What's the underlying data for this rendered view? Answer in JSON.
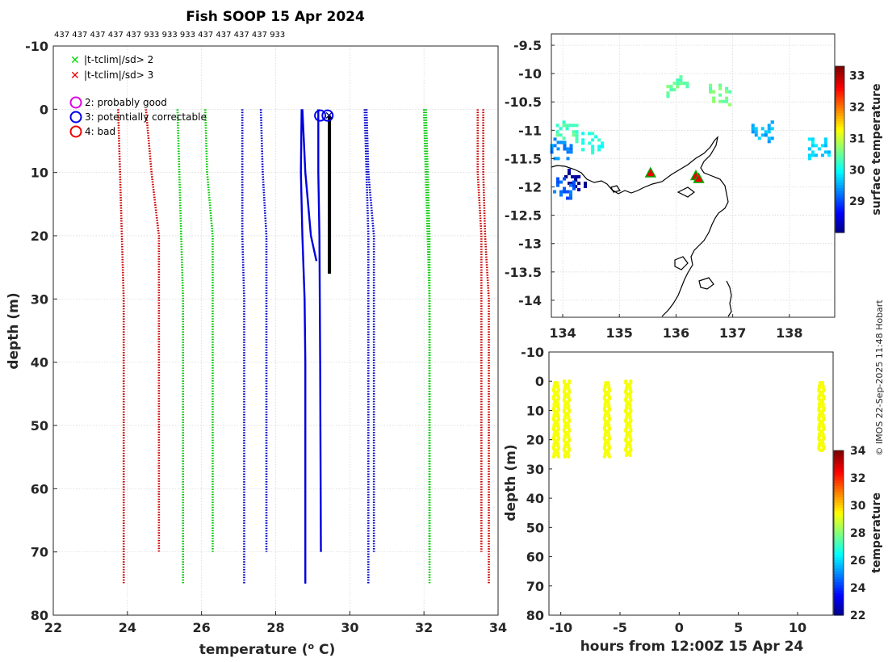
{
  "title": "Fish SOOP 15 Apr 2024",
  "platform_codes": "437 437 437 437 437 933 933 933 437 437 437 437 933",
  "credit": "© IMOS 22-Sep-2025 11:48 Hobart",
  "legend": {
    "flag_crosses": [
      {
        "label": "|t-tclim|/sd> 2",
        "color": "#00dd00"
      },
      {
        "label": "|t-tclim|/sd> 3",
        "color": "#ee0000"
      }
    ],
    "qc_circles": [
      {
        "label": "2: probably good",
        "color": "#e000e0"
      },
      {
        "label": "3: potentially correctable",
        "color": "#0000ee"
      },
      {
        "label": "4: bad",
        "color": "#ee0000"
      }
    ]
  },
  "chart_data": [
    {
      "id": "profile",
      "type": "line",
      "xlabel": "temperature (o C)",
      "ylabel": "depth (m)",
      "xlim": [
        22,
        34
      ],
      "ylim": [
        -10,
        80
      ],
      "xticks": [
        22,
        24,
        26,
        28,
        30,
        32,
        34
      ],
      "yticks": [
        -10,
        0,
        10,
        20,
        30,
        40,
        50,
        60,
        70,
        80
      ],
      "grid": true,
      "climatology_lines": [
        {
          "name": "clim -3sd (long)",
          "color": "#cc0000",
          "points": [
            [
              23.75,
              0
            ],
            [
              23.8,
              10
            ],
            [
              23.85,
              20
            ],
            [
              23.9,
              30
            ],
            [
              23.9,
              50
            ],
            [
              23.9,
              75
            ]
          ]
        },
        {
          "name": "clim +3sd (long)",
          "color": "#cc0000",
          "points": [
            [
              33.6,
              0
            ],
            [
              33.6,
              10
            ],
            [
              33.65,
              20
            ],
            [
              33.75,
              30
            ],
            [
              33.75,
              50
            ],
            [
              33.75,
              75
            ]
          ]
        },
        {
          "name": "clim -2sd (long)",
          "color": "#00cc00",
          "points": [
            [
              25.35,
              0
            ],
            [
              25.4,
              10
            ],
            [
              25.45,
              20
            ],
            [
              25.5,
              30
            ],
            [
              25.5,
              50
            ],
            [
              25.5,
              75
            ]
          ]
        },
        {
          "name": "clim +2sd (long)",
          "color": "#00cc00",
          "points": [
            [
              32.0,
              0
            ],
            [
              32.05,
              10
            ],
            [
              32.1,
              20
            ],
            [
              32.15,
              30
            ],
            [
              32.15,
              50
            ],
            [
              32.15,
              75
            ]
          ]
        },
        {
          "name": "clim -1sd (long)",
          "color": "#0000cc",
          "points": [
            [
              27.1,
              0
            ],
            [
              27.1,
              10
            ],
            [
              27.1,
              20
            ],
            [
              27.15,
              30
            ],
            [
              27.15,
              50
            ],
            [
              27.15,
              75
            ]
          ]
        },
        {
          "name": "clim +1sd (long)",
          "color": "#0000cc",
          "points": [
            [
              30.4,
              0
            ],
            [
              30.45,
              10
            ],
            [
              30.5,
              20
            ],
            [
              30.5,
              30
            ],
            [
              30.5,
              50
            ],
            [
              30.5,
              75
            ]
          ]
        },
        {
          "name": "clim -3sd (short)",
          "color": "#cc0000",
          "points": [
            [
              24.5,
              0
            ],
            [
              24.65,
              10
            ],
            [
              24.85,
              20
            ],
            [
              24.85,
              40
            ],
            [
              24.85,
              70
            ]
          ]
        },
        {
          "name": "clim +3sd (short)",
          "color": "#cc0000",
          "points": [
            [
              33.45,
              0
            ],
            [
              33.45,
              10
            ],
            [
              33.55,
              20
            ],
            [
              33.55,
              40
            ],
            [
              33.55,
              70
            ]
          ]
        },
        {
          "name": "clim -2sd (short)",
          "color": "#00cc00",
          "points": [
            [
              26.1,
              0
            ],
            [
              26.15,
              10
            ],
            [
              26.3,
              20
            ],
            [
              26.3,
              40
            ],
            [
              26.3,
              70
            ]
          ]
        },
        {
          "name": "clim +2sd (short)",
          "color": "#00cc00",
          "points": [
            [
              32.05,
              0
            ],
            [
              32.1,
              10
            ],
            [
              32.15,
              20
            ],
            [
              32.15,
              40
            ],
            [
              32.15,
              70
            ]
          ]
        },
        {
          "name": "clim -1sd (short)",
          "color": "#0000cc",
          "points": [
            [
              27.6,
              0
            ],
            [
              27.65,
              10
            ],
            [
              27.75,
              20
            ],
            [
              27.75,
              40
            ],
            [
              27.75,
              70
            ]
          ]
        },
        {
          "name": "clim +1sd (short)",
          "color": "#0000cc",
          "points": [
            [
              30.45,
              0
            ],
            [
              30.5,
              10
            ],
            [
              30.65,
              20
            ],
            [
              30.65,
              40
            ],
            [
              30.65,
              70
            ]
          ]
        }
      ],
      "profiles": [
        {
          "name": "profile 1",
          "color": "#0000dd",
          "points": [
            [
              28.7,
              0
            ],
            [
              28.68,
              10
            ],
            [
              28.72,
              20
            ],
            [
              28.78,
              30
            ],
            [
              28.8,
              40
            ],
            [
              28.8,
              75
            ]
          ]
        },
        {
          "name": "profile 2",
          "color": "#0000dd",
          "points": [
            [
              29.15,
              0
            ],
            [
              29.15,
              10
            ],
            [
              29.18,
              20
            ],
            [
              29.2,
              40
            ],
            [
              29.22,
              70
            ]
          ]
        },
        {
          "name": "profile 3",
          "color": "#0000dd",
          "points": [
            [
              28.72,
              0
            ],
            [
              28.8,
              10
            ],
            [
              28.95,
              20
            ],
            [
              29.1,
              24
            ]
          ]
        },
        {
          "name": "profile 4 (latest)",
          "color": "#000000",
          "points": [
            [
              29.45,
              1
            ],
            [
              29.45,
              10
            ],
            [
              29.45,
              20
            ],
            [
              29.45,
              26
            ]
          ]
        }
      ],
      "qc_markers": [
        {
          "x": 29.2,
          "depth": 1,
          "color": "#0000ee"
        },
        {
          "x": 29.4,
          "depth": 1,
          "color": "#0000ee"
        }
      ]
    },
    {
      "id": "map",
      "type": "heatmap",
      "xlim": [
        133.8,
        138.8
      ],
      "ylim": [
        -14.3,
        -9.3
      ],
      "xticks": [
        134,
        135,
        136,
        137,
        138
      ],
      "yticks": [
        -9.5,
        -10,
        -10.5,
        -11,
        -11.5,
        -12,
        -12.5,
        -13,
        -13.5,
        -14
      ],
      "colorbar_label": "surface temperature",
      "colorbar_range": [
        28,
        33.3
      ],
      "colorbar_ticks": [
        29,
        30,
        31,
        32,
        33
      ],
      "profile_locations": [
        {
          "lon": 135.55,
          "lat": -11.75
        },
        {
          "lon": 136.35,
          "lat": -11.8
        },
        {
          "lon": 136.4,
          "lat": -11.85
        }
      ],
      "sst_patches": [
        {
          "lon": 136.0,
          "lat": -10.2,
          "temp": 30.5
        },
        {
          "lon": 136.75,
          "lat": -10.35,
          "temp": 30.6
        },
        {
          "lon": 134.5,
          "lat": -11.2,
          "temp": 30.1
        },
        {
          "lon": 134.05,
          "lat": -11.0,
          "temp": 30.4
        },
        {
          "lon": 133.95,
          "lat": -11.3,
          "temp": 29.4
        },
        {
          "lon": 134.2,
          "lat": -11.85,
          "temp": 28.1
        },
        {
          "lon": 138.5,
          "lat": -11.3,
          "temp": 29.8
        },
        {
          "lon": 137.5,
          "lat": -11.0,
          "temp": 29.6
        },
        {
          "lon": 134.0,
          "lat": -12.0,
          "temp": 29.2
        }
      ]
    },
    {
      "id": "timeseries",
      "type": "scatter",
      "xlabel": "hours from 12:00Z 15 Apr 24",
      "ylabel": "depth (m)",
      "xlim": [
        -11,
        13
      ],
      "ylim": [
        -10,
        80
      ],
      "xticks": [
        -10,
        -5,
        0,
        5,
        10
      ],
      "yticks": [
        -10,
        0,
        10,
        20,
        30,
        40,
        50,
        60,
        70,
        80
      ],
      "colorbar_label": "temperature",
      "colorbar_range": [
        22,
        34
      ],
      "colorbar_ticks": [
        22,
        24,
        26,
        28,
        30,
        32,
        34
      ],
      "casts": [
        {
          "hour": -10.4,
          "top": 0.5,
          "bottom": 26,
          "temp": 29.4
        },
        {
          "hour": -9.5,
          "top": 0,
          "bottom": 26,
          "temp": 29.4
        },
        {
          "hour": -6.1,
          "top": 0.5,
          "bottom": 26,
          "temp": 29.4
        },
        {
          "hour": -4.3,
          "top": 0,
          "bottom": 25.5,
          "temp": 29.4
        },
        {
          "hour": 12.0,
          "top": 0.5,
          "bottom": 24,
          "temp": 29.4
        }
      ]
    }
  ]
}
